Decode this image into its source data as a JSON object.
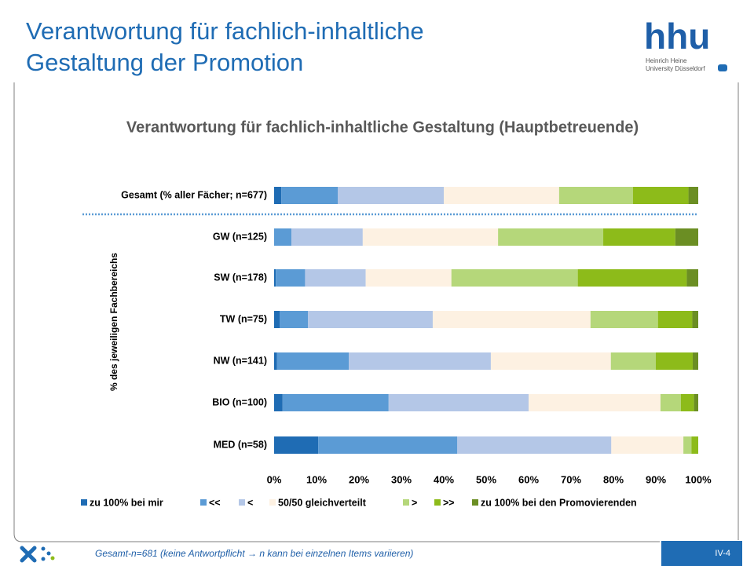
{
  "header": {
    "title_lines": [
      "Verantwortung für fachlich-inhaltliche",
      "Gestaltung der Promotion"
    ],
    "logo": "hhu",
    "logo_sub": [
      "Heinrich Heine",
      "University Düsseldorf"
    ]
  },
  "chart_data": {
    "type": "stacked_barh",
    "title": "Verantwortung für fachlich-inhaltliche Gestaltung (Hauptbetreuende)",
    "ylabel": "% des jeweiligen Fachbereichs",
    "categories": [
      "Gesamt (% aller Fächer; n=677)",
      "GW (n=125)",
      "SW (n=178)",
      "TW (n=75)",
      "NW (n=141)",
      "BIO (n=100)",
      "MED (n=58)"
    ],
    "series": [
      {
        "name": "zu 100% bei mir",
        "color": "#1f6cb4",
        "values": [
          1.7,
          0,
          0.4,
          1.3,
          0.7,
          2.0,
          10.4
        ]
      },
      {
        "name": "<<",
        "color": "#5b9bd5",
        "values": [
          13.3,
          4.1,
          6.9,
          6.7,
          16.9,
          25.0,
          32.8
        ]
      },
      {
        "name": "<",
        "color": "#b4c7e7",
        "values": [
          25.0,
          16.8,
          14.3,
          29.4,
          33.5,
          33.0,
          36.3
        ]
      },
      {
        "name": "50/50 gleichverteilt",
        "color": "#fdf1e2",
        "values": [
          27.2,
          31.9,
          20.2,
          37.2,
          28.3,
          31.1,
          17.0
        ]
      },
      {
        "name": ">",
        "color": "#b5d77a",
        "values": [
          17.4,
          24.8,
          29.8,
          15.9,
          10.6,
          4.8,
          1.9
        ]
      },
      {
        "name": ">>",
        "color": "#8dbb1a",
        "values": [
          13.1,
          17.0,
          25.7,
          8.1,
          8.7,
          3.1,
          1.6
        ]
      },
      {
        "name": "zu 100% bei den Promovierenden",
        "color": "#6b8e23",
        "values": [
          2.3,
          5.4,
          2.7,
          1.4,
          1.3,
          1.0,
          0
        ]
      }
    ],
    "xlim": [
      0,
      100
    ],
    "xticks": [
      {
        "value": 0,
        "label": "0%"
      },
      {
        "value": 10,
        "label": "10%"
      },
      {
        "value": 20,
        "label": "20%"
      },
      {
        "value": 30,
        "label": "30%"
      },
      {
        "value": 40,
        "label": "40%"
      },
      {
        "value": 50,
        "label": "50%"
      },
      {
        "value": 60,
        "label": "60%"
      },
      {
        "value": 70,
        "label": "70%"
      },
      {
        "value": 80,
        "label": "80%"
      },
      {
        "value": 90,
        "label": "90%"
      },
      {
        "value": 100,
        "label": "100%"
      }
    ]
  },
  "footer": {
    "note": "Gesamt-n=681 (keine Antwortpflicht → n kann bei einzelnen Items variieren)",
    "page": "IV-4"
  }
}
